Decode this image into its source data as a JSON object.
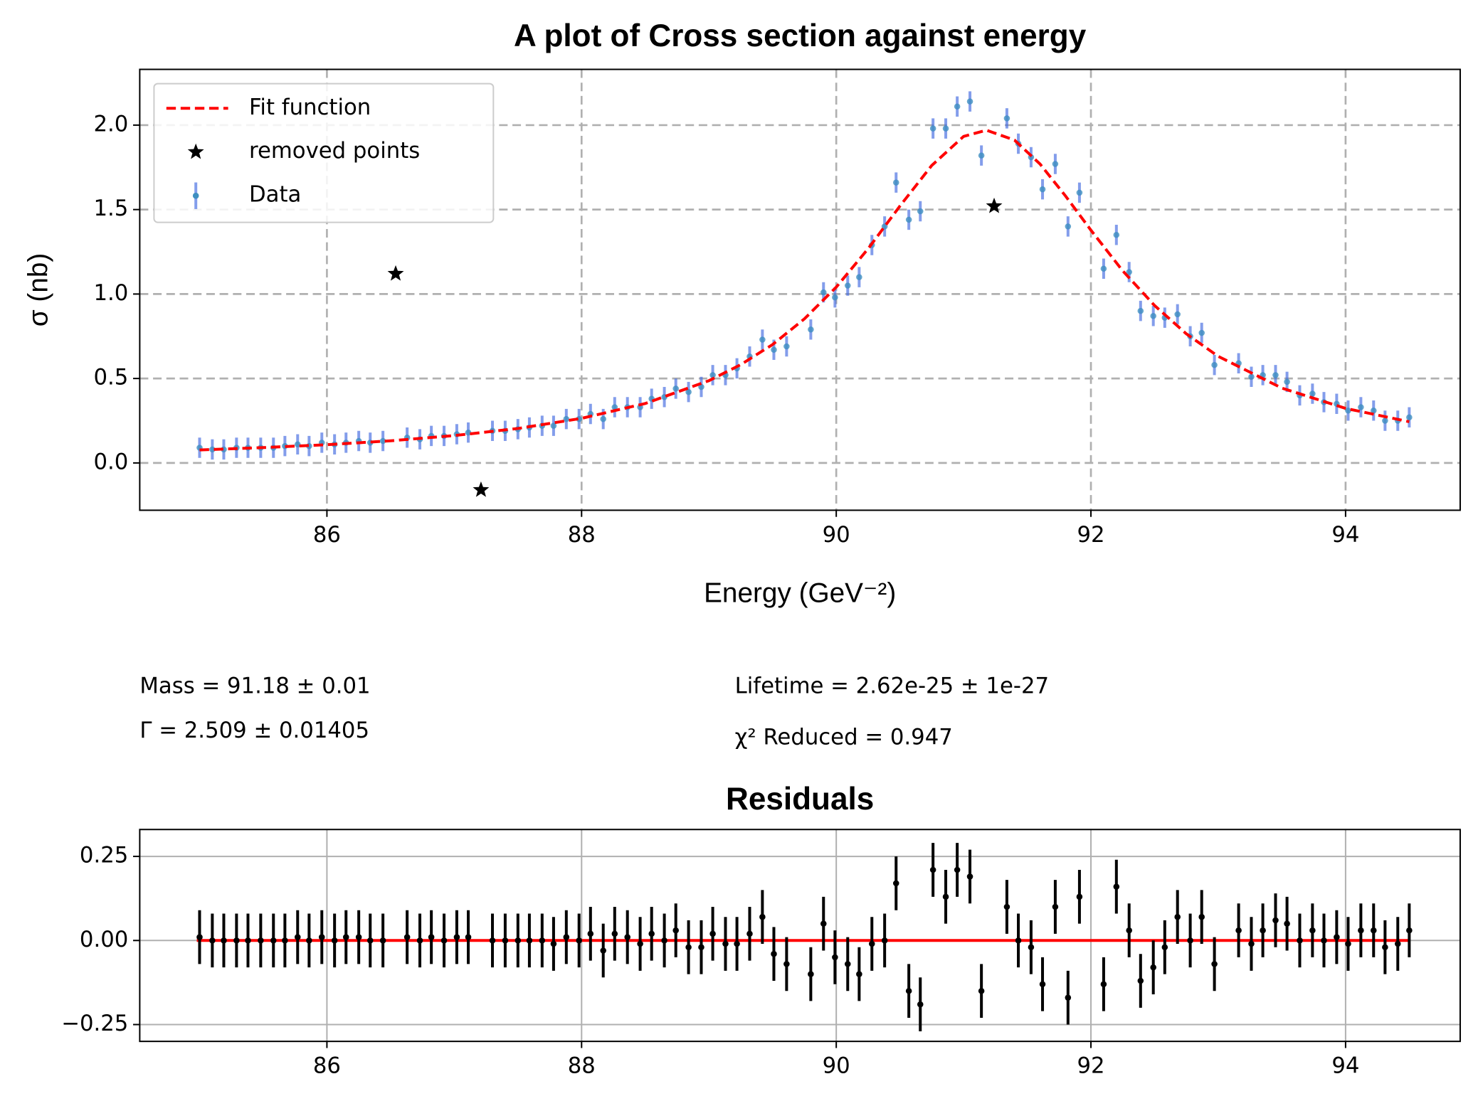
{
  "chart_data": [
    {
      "type": "errorbar",
      "title": "A plot of Cross section against energy",
      "xlabel": "Energy (GeV⁻²)",
      "ylabel": "σ (nb)",
      "xlim": [
        84.53,
        94.9
      ],
      "ylim": [
        -0.28,
        2.33
      ],
      "xticks": [
        86,
        88,
        90,
        92,
        94
      ],
      "yticks": [
        {
          "value": 0,
          "label": "0.0"
        },
        {
          "value": 0.5,
          "label": "0.5"
        },
        {
          "value": 1,
          "label": "1.0"
        },
        {
          "value": 1.5,
          "label": "1.5"
        },
        {
          "value": 2,
          "label": "2.0"
        }
      ],
      "grid": true,
      "grid_style": "dashed",
      "legend": "upper left",
      "series": [
        {
          "name": "Fit function",
          "kind": "line",
          "color": "#ff0000",
          "x": [
            85.0,
            85.5,
            86.0,
            86.5,
            87.0,
            87.5,
            88.0,
            88.5,
            89.0,
            89.25,
            89.5,
            89.75,
            90.0,
            90.25,
            90.5,
            90.75,
            91.0,
            91.18,
            91.4,
            91.6,
            91.8,
            92.0,
            92.25,
            92.5,
            92.75,
            93.0,
            93.5,
            94.0,
            94.5
          ],
          "values": [
            0.077,
            0.091,
            0.108,
            0.131,
            0.162,
            0.204,
            0.264,
            0.352,
            0.487,
            0.582,
            0.701,
            0.853,
            1.041,
            1.268,
            1.521,
            1.761,
            1.933,
            1.97,
            1.911,
            1.77,
            1.581,
            1.378,
            1.137,
            0.932,
            0.764,
            0.631,
            0.443,
            0.323,
            0.244
          ]
        },
        {
          "name": "removed points",
          "kind": "star",
          "color": "#000000",
          "x": [
            86.54,
            87.21,
            91.24
          ],
          "values": [
            1.12,
            -0.16,
            1.52
          ]
        },
        {
          "name": "Data",
          "kind": "errorbar",
          "color": "#4169e1",
          "marker_color": "#3f8fc0",
          "error": 0.06,
          "x": [
            85.0,
            85.1,
            85.19,
            85.29,
            85.38,
            85.48,
            85.58,
            85.67,
            85.77,
            85.86,
            85.96,
            86.06,
            86.15,
            86.25,
            86.34,
            86.44,
            86.63,
            86.73,
            86.82,
            86.92,
            87.02,
            87.11,
            87.3,
            87.4,
            87.5,
            87.59,
            87.69,
            87.78,
            87.88,
            87.98,
            88.07,
            88.17,
            88.26,
            88.36,
            88.46,
            88.55,
            88.65,
            88.74,
            88.84,
            88.94,
            89.03,
            89.13,
            89.22,
            89.32,
            89.42,
            89.51,
            89.61,
            89.8,
            89.9,
            89.99,
            90.09,
            90.18,
            90.28,
            90.38,
            90.47,
            90.57,
            90.66,
            90.76,
            90.86,
            90.95,
            91.05,
            91.14,
            91.34,
            91.43,
            91.53,
            91.62,
            91.72,
            91.82,
            91.91,
            92.1,
            92.2,
            92.3,
            92.39,
            92.49,
            92.58,
            92.68,
            92.78,
            92.87,
            92.97,
            93.16,
            93.26,
            93.35,
            93.45,
            93.54,
            93.64,
            93.74,
            93.83,
            93.93,
            94.02,
            94.12,
            94.22,
            94.31,
            94.41,
            94.5
          ],
          "values": [
            0.09,
            0.08,
            0.08,
            0.09,
            0.09,
            0.09,
            0.09,
            0.1,
            0.11,
            0.1,
            0.12,
            0.11,
            0.12,
            0.13,
            0.12,
            0.13,
            0.15,
            0.14,
            0.16,
            0.16,
            0.17,
            0.18,
            0.19,
            0.19,
            0.2,
            0.21,
            0.22,
            0.22,
            0.26,
            0.26,
            0.29,
            0.26,
            0.33,
            0.33,
            0.33,
            0.38,
            0.39,
            0.44,
            0.42,
            0.45,
            0.52,
            0.52,
            0.56,
            0.63,
            0.73,
            0.67,
            0.69,
            0.79,
            1.01,
            0.98,
            1.05,
            1.1,
            1.29,
            1.4,
            1.66,
            1.44,
            1.49,
            1.98,
            1.98,
            2.11,
            2.14,
            1.82,
            2.04,
            1.89,
            1.81,
            1.62,
            1.77,
            1.4,
            1.6,
            1.15,
            1.35,
            1.13,
            0.9,
            0.87,
            0.86,
            0.88,
            0.75,
            0.77,
            0.58,
            0.59,
            0.51,
            0.52,
            0.52,
            0.48,
            0.4,
            0.41,
            0.36,
            0.35,
            0.31,
            0.33,
            0.31,
            0.25,
            0.25,
            0.27
          ]
        }
      ],
      "annotations": [
        "Mass = 91.18 ± 0.01",
        "Γ = 2.509 ± 0.01405",
        "Lifetime = 2.62e-25 ±  1e-27",
        "χ² Reduced = 0.947"
      ]
    },
    {
      "type": "errorbar",
      "title": "Residuals",
      "xlim": [
        84.53,
        94.9
      ],
      "ylim": [
        -0.3,
        0.33
      ],
      "xticks": [
        86,
        88,
        90,
        92,
        94
      ],
      "yticks": [
        {
          "value": -0.25,
          "label": "−0.25"
        },
        {
          "value": 0,
          "label": "0.00"
        },
        0.25
      ],
      "grid": true,
      "grid_style": "solid",
      "hline": 0,
      "hline_color": "#ff0000",
      "series": [
        {
          "kind": "errorbar",
          "color": "#000000",
          "marker_color": "#000000",
          "error": 0.08,
          "x": [
            85.0,
            85.1,
            85.19,
            85.29,
            85.38,
            85.48,
            85.58,
            85.67,
            85.77,
            85.86,
            85.96,
            86.06,
            86.15,
            86.25,
            86.34,
            86.44,
            86.63,
            86.73,
            86.82,
            86.92,
            87.02,
            87.11,
            87.3,
            87.4,
            87.5,
            87.59,
            87.69,
            87.78,
            87.88,
            87.98,
            88.07,
            88.17,
            88.26,
            88.36,
            88.46,
            88.55,
            88.65,
            88.74,
            88.84,
            88.94,
            89.03,
            89.13,
            89.22,
            89.32,
            89.42,
            89.51,
            89.61,
            89.8,
            89.9,
            89.99,
            90.09,
            90.18,
            90.28,
            90.38,
            90.47,
            90.57,
            90.66,
            90.76,
            90.86,
            90.95,
            91.05,
            91.14,
            91.34,
            91.43,
            91.53,
            91.62,
            91.72,
            91.82,
            91.91,
            92.1,
            92.2,
            92.3,
            92.39,
            92.49,
            92.58,
            92.68,
            92.78,
            92.87,
            92.97,
            93.16,
            93.26,
            93.35,
            93.45,
            93.54,
            93.64,
            93.74,
            93.83,
            93.93,
            94.02,
            94.12,
            94.22,
            94.31,
            94.41,
            94.5
          ],
          "values": [
            0.01,
            0,
            0,
            0,
            0,
            0,
            0,
            0,
            0.01,
            0,
            0.01,
            0,
            0.01,
            0.01,
            0,
            0,
            0.01,
            0,
            0.01,
            0,
            0.01,
            0.01,
            0,
            0,
            0,
            0,
            0,
            -0.01,
            0.01,
            0,
            0.02,
            -0.03,
            0.02,
            0.01,
            -0.01,
            0.02,
            0,
            0.03,
            -0.02,
            -0.02,
            0.02,
            -0.01,
            -0.01,
            0.02,
            0.07,
            -0.04,
            -0.07,
            -0.1,
            0.05,
            -0.05,
            -0.07,
            -0.1,
            -0.01,
            0,
            0.17,
            -0.15,
            -0.19,
            0.21,
            0.13,
            0.21,
            0.19,
            -0.15,
            0.1,
            0,
            -0.02,
            -0.13,
            0.1,
            -0.17,
            0.13,
            -0.13,
            0.16,
            0.03,
            -0.12,
            -0.08,
            -0.02,
            0.07,
            0,
            0.07,
            -0.07,
            0.03,
            -0.01,
            0.03,
            0.06,
            0.05,
            0,
            0.03,
            0,
            0.01,
            -0.01,
            0.03,
            0.03,
            -0.02,
            -0.01,
            0.03
          ]
        }
      ]
    }
  ]
}
